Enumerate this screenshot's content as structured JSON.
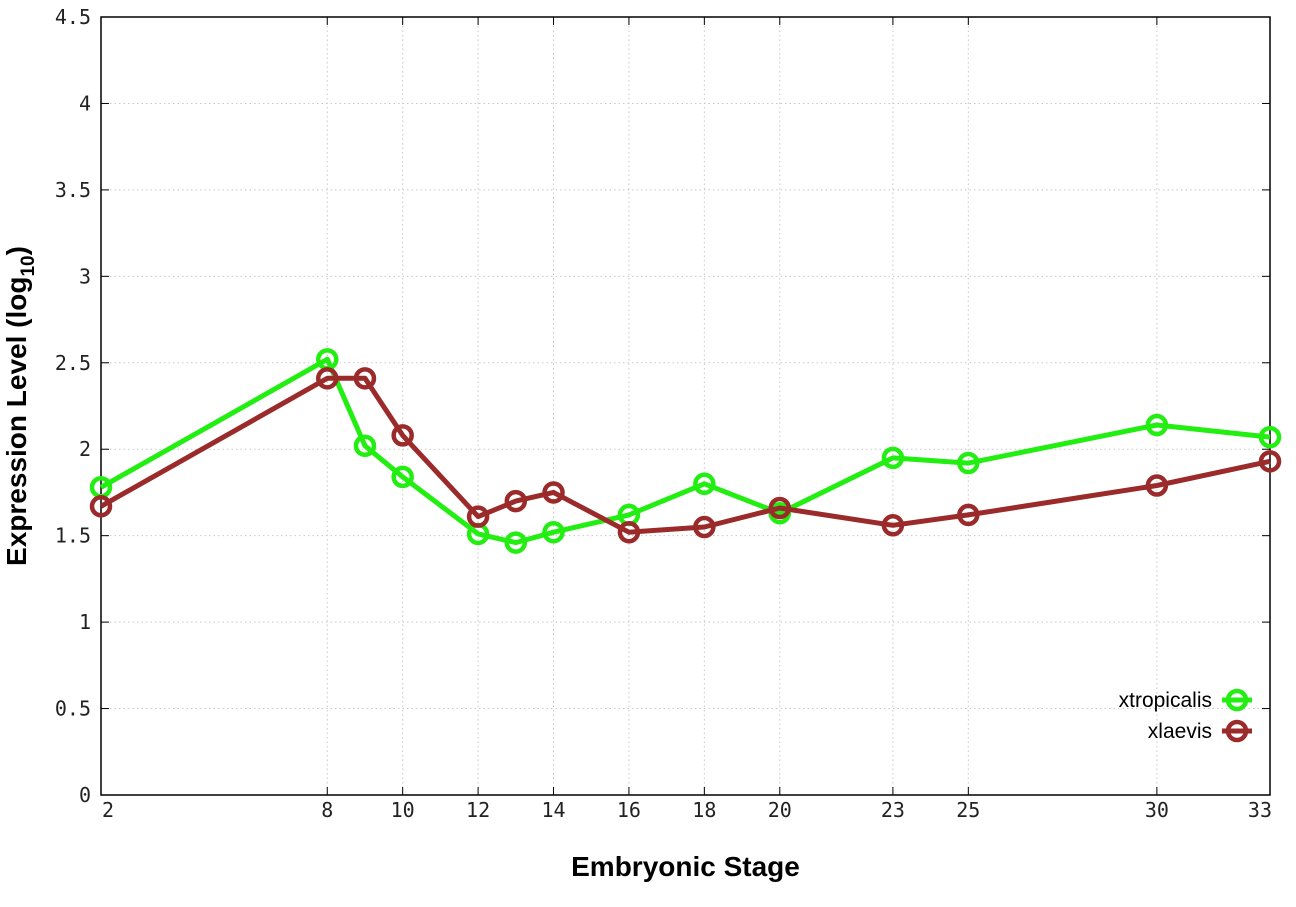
{
  "chart_data": {
    "type": "line",
    "title": "",
    "xlabel": "Embryonic Stage",
    "ylabel": {
      "main": "Expression Level (log",
      "sub": "10",
      "close": ")"
    },
    "xlim": [
      2,
      33
    ],
    "ylim": [
      0,
      4.5
    ],
    "x_ticks": [
      2,
      8,
      10,
      12,
      14,
      16,
      18,
      20,
      23,
      25,
      30,
      33
    ],
    "y_ticks": [
      0,
      0.5,
      1,
      1.5,
      2,
      2.5,
      3,
      3.5,
      4,
      4.5
    ],
    "y_tick_labels": [
      "0",
      "0.5",
      "1",
      "1.5",
      "2",
      "2.5",
      "3",
      "3.5",
      "4",
      "4.5"
    ],
    "grid": true,
    "legend_position": "bottom-right",
    "series": [
      {
        "name": "xtropicalis",
        "color": "#22ee11",
        "x": [
          2,
          8,
          9,
          10,
          12,
          13,
          14,
          16,
          18,
          20,
          23,
          25,
          30,
          33
        ],
        "y": [
          1.78,
          2.52,
          2.02,
          1.84,
          1.51,
          1.46,
          1.52,
          1.62,
          1.8,
          1.63,
          1.95,
          1.92,
          2.14,
          2.07
        ]
      },
      {
        "name": "xlaevis",
        "color": "#9b2a2a",
        "x": [
          2,
          8,
          9,
          10,
          12,
          13,
          14,
          16,
          18,
          20,
          23,
          25,
          30,
          33
        ],
        "y": [
          1.67,
          2.41,
          2.41,
          2.08,
          1.61,
          1.7,
          1.75,
          1.52,
          1.55,
          1.66,
          1.56,
          1.62,
          1.79,
          1.93
        ]
      }
    ]
  }
}
